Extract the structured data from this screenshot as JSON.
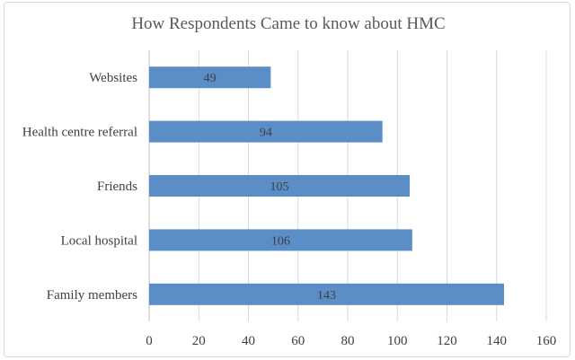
{
  "chart_data": {
    "type": "bar",
    "orientation": "horizontal",
    "title": "How Respondents Came to know about HMC",
    "categories": [
      "Websites",
      "Health centre referral",
      "Friends",
      "Local hospital",
      "Family members"
    ],
    "values": [
      49,
      94,
      105,
      106,
      143
    ],
    "xlim": [
      0,
      160
    ],
    "xticks": [
      0,
      20,
      40,
      60,
      80,
      100,
      120,
      140,
      160
    ],
    "grid": true,
    "legend": "none",
    "bar_color": "#5b8ec6",
    "data_labels": "inside-center"
  }
}
